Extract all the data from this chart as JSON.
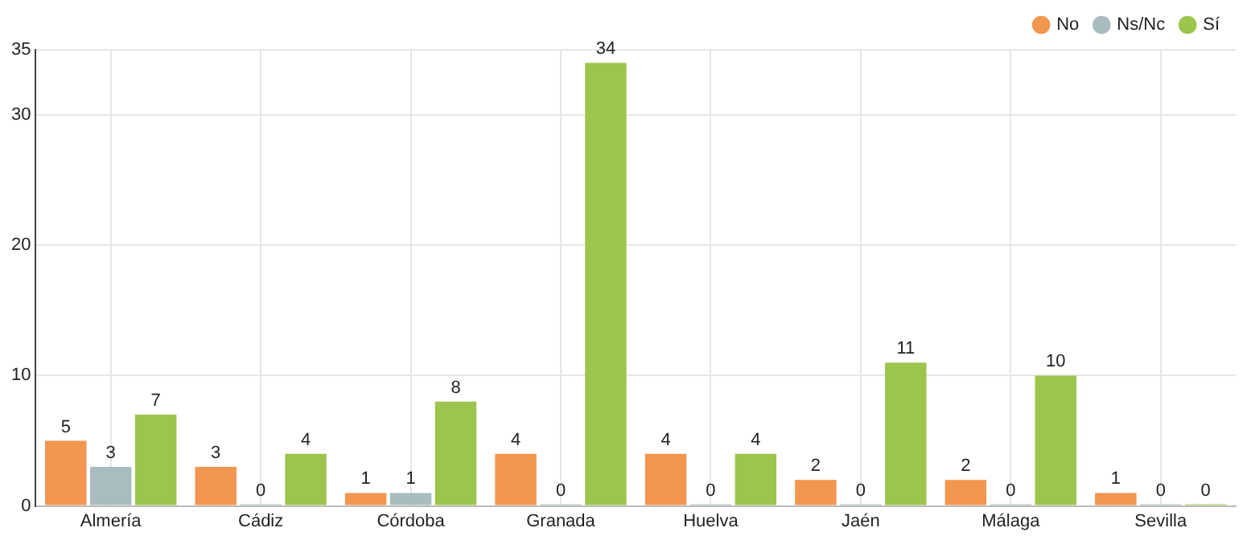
{
  "chart_data": {
    "type": "bar",
    "categories": [
      "Almería",
      "Cádiz",
      "Córdoba",
      "Granada",
      "Huelva",
      "Jaén",
      "Málaga",
      "Sevilla"
    ],
    "series": [
      {
        "name": "No",
        "color": "#f29650",
        "values": [
          5,
          3,
          1,
          4,
          4,
          2,
          2,
          1
        ]
      },
      {
        "name": "Ns/Nc",
        "color": "#a9bcbf",
        "values": [
          3,
          0,
          1,
          0,
          0,
          0,
          0,
          0
        ]
      },
      {
        "name": "Sí",
        "color": "#9dc44d",
        "values": [
          7,
          4,
          8,
          34,
          4,
          11,
          10,
          0
        ]
      }
    ],
    "ylim": [
      0,
      35
    ],
    "yticks": [
      0,
      10,
      20,
      30,
      35
    ],
    "grid": true,
    "legend": "top right",
    "data_labels": true
  }
}
